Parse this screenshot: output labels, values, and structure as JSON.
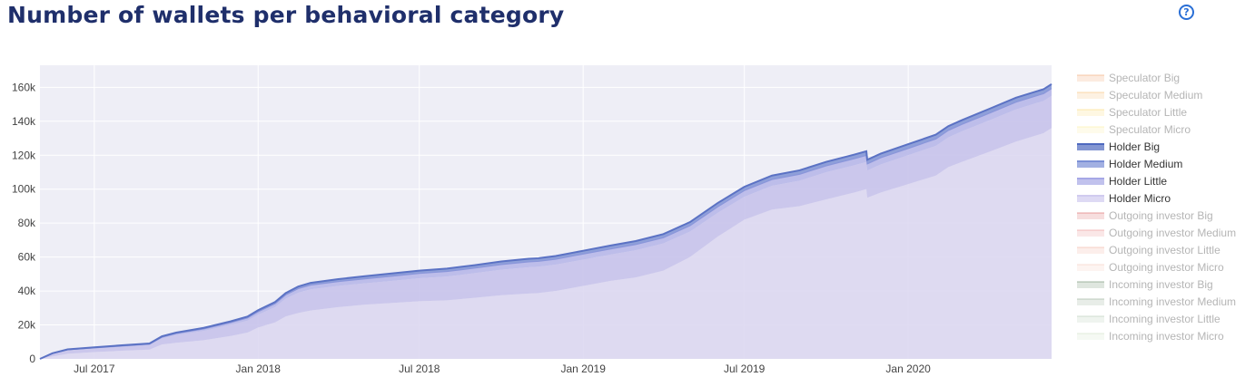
{
  "header": {
    "title": "Number of wallets per behavioral category",
    "help_icon": "?"
  },
  "chart_data": {
    "type": "area",
    "stacked": true,
    "grid": true,
    "legend_position": "right",
    "x_ticks": [
      "Jul 2017",
      "Jan 2018",
      "Jul 2018",
      "Jan 2019",
      "Jul 2019",
      "Jan 2020"
    ],
    "y_ticks": [
      "0",
      "20k",
      "40k",
      "60k",
      "80k",
      "100k",
      "120k",
      "140k",
      "160k"
    ],
    "ylim": [
      0,
      173000
    ],
    "xlim": [
      "2017-05-01",
      "2020-06-10"
    ],
    "x": [
      "2017-05-01",
      "2017-05-15",
      "2017-06-01",
      "2017-07-01",
      "2017-08-01",
      "2017-09-01",
      "2017-09-15",
      "2017-10-01",
      "2017-11-01",
      "2017-12-01",
      "2017-12-20",
      "2018-01-01",
      "2018-01-20",
      "2018-02-01",
      "2018-02-15",
      "2018-03-01",
      "2018-04-01",
      "2018-05-01",
      "2018-06-01",
      "2018-07-01",
      "2018-08-01",
      "2018-09-01",
      "2018-10-01",
      "2018-11-01",
      "2018-11-12",
      "2018-11-13",
      "2018-12-01",
      "2019-01-01",
      "2019-02-01",
      "2019-03-01",
      "2019-04-01",
      "2019-05-01",
      "2019-06-01",
      "2019-07-01",
      "2019-08-01",
      "2019-09-01",
      "2019-10-01",
      "2019-11-01",
      "2019-11-15",
      "2019-11-16",
      "2019-12-01",
      "2020-01-01",
      "2020-02-01",
      "2020-02-15",
      "2020-03-01",
      "2020-04-01",
      "2020-05-01",
      "2020-06-01",
      "2020-06-10"
    ],
    "series": [
      {
        "name": "Holder Micro",
        "color": "#dad6f0",
        "visible": true,
        "values": [
          0,
          1500,
          3000,
          4000,
          4800,
          5500,
          8500,
          9500,
          11000,
          13500,
          15500,
          18500,
          21500,
          25000,
          27000,
          28500,
          30500,
          32000,
          33000,
          34000,
          34500,
          36000,
          37500,
          38500,
          38800,
          38900,
          40000,
          43000,
          46000,
          48000,
          52000,
          60000,
          72000,
          82000,
          88000,
          90000,
          94000,
          98000,
          100000,
          95000,
          98000,
          103000,
          108000,
          113000,
          116000,
          122000,
          128000,
          133000,
          136000
        ]
      },
      {
        "name": "Holder Little",
        "color": "#c4c0ea",
        "visible": true,
        "values": [
          0,
          1500,
          2000,
          2000,
          2200,
          2500,
          3500,
          4500,
          5500,
          6500,
          7000,
          7500,
          9000,
          10500,
          12000,
          12500,
          12500,
          12500,
          13000,
          13500,
          14000,
          14500,
          15000,
          15500,
          15500,
          15500,
          15500,
          15500,
          15500,
          16000,
          16000,
          15000,
          14000,
          13500,
          14000,
          15000,
          16000,
          16000,
          16000,
          16000,
          16500,
          17000,
          17500,
          17500,
          18000,
          18500,
          19000,
          19000,
          19000
        ]
      },
      {
        "name": "Holder Medium",
        "color": "#b4b4e8",
        "visible": true,
        "values": [
          0,
          200,
          400,
          500,
          600,
          700,
          800,
          1000,
          1200,
          1400,
          1600,
          1800,
          2000,
          2200,
          2400,
          2500,
          2600,
          2700,
          2800,
          2900,
          3000,
          3000,
          3100,
          3200,
          3200,
          3200,
          3200,
          3300,
          3300,
          3400,
          3400,
          3500,
          3600,
          3700,
          3700,
          3800,
          3800,
          3900,
          3900,
          3900,
          4000,
          4000,
          4100,
          4100,
          4100,
          4200,
          4300,
          4300,
          4300
        ]
      },
      {
        "name": "Holder Big",
        "color": "#7c90d4",
        "visible": true,
        "values": [
          0,
          100,
          200,
          300,
          400,
          400,
          500,
          500,
          600,
          700,
          800,
          900,
          1000,
          1100,
          1200,
          1300,
          1400,
          1500,
          1600,
          1600,
          1700,
          1700,
          1800,
          1800,
          1800,
          1800,
          1900,
          1900,
          2000,
          2000,
          2100,
          2100,
          2200,
          2200,
          2300,
          2300,
          2300,
          2400,
          2400,
          2400,
          2400,
          2500,
          2500,
          2500,
          2500,
          2600,
          2600,
          2600,
          2600
        ]
      }
    ]
  },
  "legend": [
    {
      "label": "Speculator Big",
      "color": "#f4b183",
      "active": false
    },
    {
      "label": "Speculator Medium",
      "color": "#f8c98a",
      "active": false
    },
    {
      "label": "Speculator Little",
      "color": "#fbe08a",
      "active": false
    },
    {
      "label": "Speculator Micro",
      "color": "#fdf0b0",
      "active": false
    },
    {
      "label": "Holder Big",
      "color": "#4e69bf",
      "active": true
    },
    {
      "label": "Holder Medium",
      "color": "#7b8fd6",
      "active": true
    },
    {
      "label": "Holder Little",
      "color": "#a6a8e6",
      "active": true
    },
    {
      "label": "Holder Micro",
      "color": "#d0cbef",
      "active": true
    },
    {
      "label": "Outgoing investor Big",
      "color": "#e07a7a",
      "active": false
    },
    {
      "label": "Outgoing investor Medium",
      "color": "#eda0a0",
      "active": false
    },
    {
      "label": "Outgoing investor Little",
      "color": "#f3bcb0",
      "active": false
    },
    {
      "label": "Outgoing investor Micro",
      "color": "#f6d2c6",
      "active": false
    },
    {
      "label": "Incoming investor Big",
      "color": "#7f9a7f",
      "active": false
    },
    {
      "label": "Incoming investor Medium",
      "color": "#a2b8a2",
      "active": false
    },
    {
      "label": "Incoming investor Little",
      "color": "#c0d2c0",
      "active": false
    },
    {
      "label": "Incoming investor Micro",
      "color": "#d8e6cf",
      "active": false
    }
  ]
}
